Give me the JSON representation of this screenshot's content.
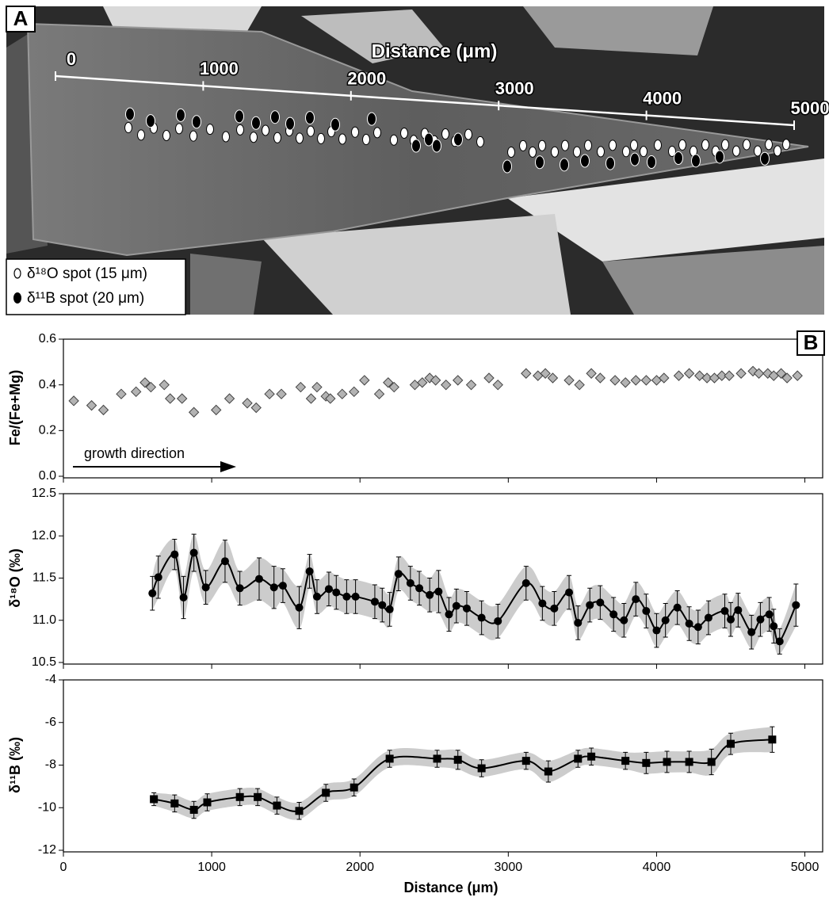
{
  "panel_a": {
    "label": "A",
    "scale_title": "Distance (μm)",
    "scale_ticks": [
      0,
      1000,
      2000,
      3000,
      4000,
      5000
    ],
    "legend": [
      "δ¹⁸O spot (15 μm)",
      "δ¹¹B spot (20 μm)"
    ]
  },
  "panel_b_label": "B",
  "chart_data": [
    {
      "type": "scatter",
      "ylabel": "Fe/(Fe+Mg)",
      "annotation": "growth direction",
      "marker": "diamond",
      "color": "#b3b3b3",
      "x": [
        70,
        190,
        270,
        390,
        490,
        550,
        590,
        680,
        720,
        800,
        880,
        1030,
        1120,
        1240,
        1300,
        1390,
        1470,
        1600,
        1670,
        1710,
        1770,
        1800,
        1880,
        1960,
        2030,
        2130,
        2190,
        2230,
        2370,
        2420,
        2470,
        2510,
        2580,
        2660,
        2750,
        2870,
        2930,
        3120,
        3200,
        3250,
        3300,
        3410,
        3480,
        3560,
        3620,
        3720,
        3790,
        3860,
        3930,
        4000,
        4050,
        4150,
        4220,
        4290,
        4340,
        4390,
        4440,
        4490,
        4570,
        4650,
        4690,
        4750,
        4790,
        4840,
        4880,
        4950
      ],
      "values": [
        0.33,
        0.31,
        0.29,
        0.36,
        0.37,
        0.41,
        0.39,
        0.4,
        0.34,
        0.34,
        0.28,
        0.29,
        0.34,
        0.32,
        0.3,
        0.36,
        0.36,
        0.39,
        0.34,
        0.39,
        0.35,
        0.34,
        0.36,
        0.37,
        0.42,
        0.36,
        0.41,
        0.39,
        0.4,
        0.41,
        0.43,
        0.42,
        0.4,
        0.42,
        0.4,
        0.43,
        0.4,
        0.45,
        0.44,
        0.45,
        0.43,
        0.42,
        0.4,
        0.45,
        0.43,
        0.42,
        0.41,
        0.42,
        0.42,
        0.42,
        0.43,
        0.44,
        0.45,
        0.44,
        0.43,
        0.43,
        0.44,
        0.44,
        0.45,
        0.46,
        0.45,
        0.45,
        0.44,
        0.45,
        0.43,
        0.44
      ],
      "xlim": [
        0,
        5120
      ],
      "xticks": [
        0,
        1000,
        2000,
        3000,
        4000,
        5000
      ],
      "ylim": [
        0,
        0.6
      ],
      "yticks": [
        {
          "value": 0,
          "label": "0.0"
        },
        0.2,
        0.4,
        0.6
      ]
    },
    {
      "type": "line",
      "ylabel": "δ¹⁸O (‰)",
      "marker": "circle",
      "color": "#000000",
      "band_color": "#cccccc",
      "x": [
        600,
        640,
        750,
        810,
        880,
        960,
        1090,
        1190,
        1320,
        1420,
        1480,
        1590,
        1660,
        1710,
        1790,
        1840,
        1910,
        1970,
        2100,
        2150,
        2200,
        2260,
        2340,
        2400,
        2470,
        2530,
        2600,
        2650,
        2720,
        2820,
        2930,
        3120,
        3230,
        3310,
        3410,
        3470,
        3550,
        3620,
        3710,
        3780,
        3860,
        3930,
        4000,
        4060,
        4140,
        4220,
        4280,
        4350,
        4460,
        4500,
        4550,
        4640,
        4700,
        4760,
        4790,
        4830,
        4940
      ],
      "values": [
        11.32,
        11.51,
        11.78,
        11.27,
        11.8,
        11.39,
        11.7,
        11.38,
        11.49,
        11.39,
        11.41,
        11.15,
        11.58,
        11.28,
        11.37,
        11.33,
        11.28,
        11.28,
        11.22,
        11.18,
        11.13,
        11.55,
        11.44,
        11.38,
        11.3,
        11.34,
        11.07,
        11.17,
        11.14,
        11.03,
        10.99,
        11.44,
        11.2,
        11.14,
        11.33,
        10.97,
        11.18,
        11.21,
        11.07,
        11.0,
        11.25,
        11.11,
        10.88,
        11.0,
        11.15,
        10.96,
        10.92,
        11.03,
        11.11,
        11.01,
        11.12,
        10.86,
        11.01,
        11.07,
        10.93,
        10.75,
        11.18
      ],
      "errors": [
        0.2,
        0.25,
        0.18,
        0.25,
        0.22,
        0.2,
        0.25,
        0.2,
        0.25,
        0.25,
        0.2,
        0.25,
        0.2,
        0.2,
        0.2,
        0.2,
        0.2,
        0.2,
        0.2,
        0.2,
        0.2,
        0.2,
        0.2,
        0.2,
        0.2,
        0.25,
        0.2,
        0.2,
        0.2,
        0.2,
        0.2,
        0.2,
        0.2,
        0.2,
        0.2,
        0.2,
        0.2,
        0.2,
        0.2,
        0.2,
        0.2,
        0.2,
        0.2,
        0.2,
        0.2,
        0.2,
        0.2,
        0.2,
        0.2,
        0.2,
        0.2,
        0.2,
        0.2,
        0.2,
        0.2,
        0.15,
        0.25
      ],
      "xlim": [
        0,
        5120
      ],
      "xticks": [
        0,
        1000,
        2000,
        3000,
        4000,
        5000
      ],
      "ylim": [
        10.5,
        12.5
      ],
      "yticks": [
        10.5,
        {
          "value": 11,
          "label": "11.0"
        },
        11.5,
        {
          "value": 12,
          "label": "12.0"
        },
        12.5
      ]
    },
    {
      "type": "line",
      "ylabel": "δ¹¹B (‰)",
      "xlabel": "Distance (μm)",
      "marker": "square",
      "color": "#000000",
      "band_color": "#cccccc",
      "x": [
        610,
        750,
        880,
        970,
        1190,
        1310,
        1440,
        1590,
        1770,
        1960,
        2200,
        2520,
        2660,
        2820,
        3120,
        3270,
        3470,
        3560,
        3790,
        3930,
        4070,
        4220,
        4370,
        4500,
        4780
      ],
      "values": [
        -9.6,
        -9.8,
        -10.1,
        -9.75,
        -9.5,
        -9.5,
        -9.9,
        -10.15,
        -9.3,
        -9.05,
        -7.7,
        -7.7,
        -7.75,
        -8.15,
        -7.8,
        -8.3,
        -7.7,
        -7.6,
        -7.8,
        -7.9,
        -7.85,
        -7.85,
        -7.85,
        -7.0,
        -6.8
      ],
      "errors": [
        0.3,
        0.4,
        0.4,
        0.4,
        0.4,
        0.4,
        0.4,
        0.4,
        0.4,
        0.4,
        0.4,
        0.4,
        0.45,
        0.4,
        0.4,
        0.5,
        0.4,
        0.4,
        0.4,
        0.5,
        0.5,
        0.5,
        0.6,
        0.5,
        0.6
      ],
      "xlim": [
        0,
        5120
      ],
      "xticks": [
        0,
        1000,
        2000,
        3000,
        4000,
        5000
      ],
      "ylim": [
        -12,
        -4
      ],
      "yticks": [
        -12,
        -10,
        -8,
        -6,
        -4
      ]
    }
  ]
}
